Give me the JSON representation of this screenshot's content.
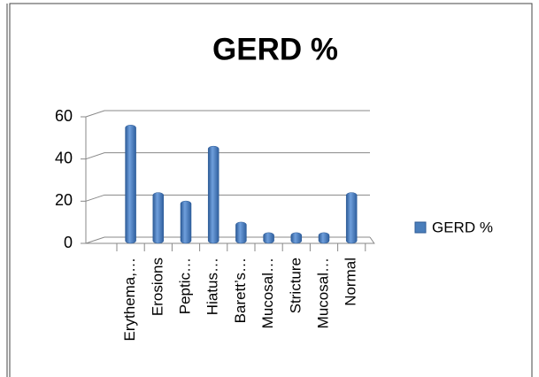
{
  "chart_data": {
    "type": "bar",
    "title": "GERD %",
    "categories": [
      "Erythema,…",
      "Erosions",
      "Peptic…",
      "Hiatus…",
      "Barett’s…",
      "Mucosal…",
      "Stricture",
      "Mucosal…",
      "Normal"
    ],
    "series": [
      {
        "name": "GERD %",
        "color": "#4a7ebb",
        "values": [
          54,
          22,
          18,
          44,
          8,
          3,
          3,
          3,
          22
        ]
      }
    ],
    "ylim": [
      0,
      60
    ],
    "yticks": [
      0,
      20,
      40,
      60
    ],
    "grid": true,
    "legend": "right"
  }
}
